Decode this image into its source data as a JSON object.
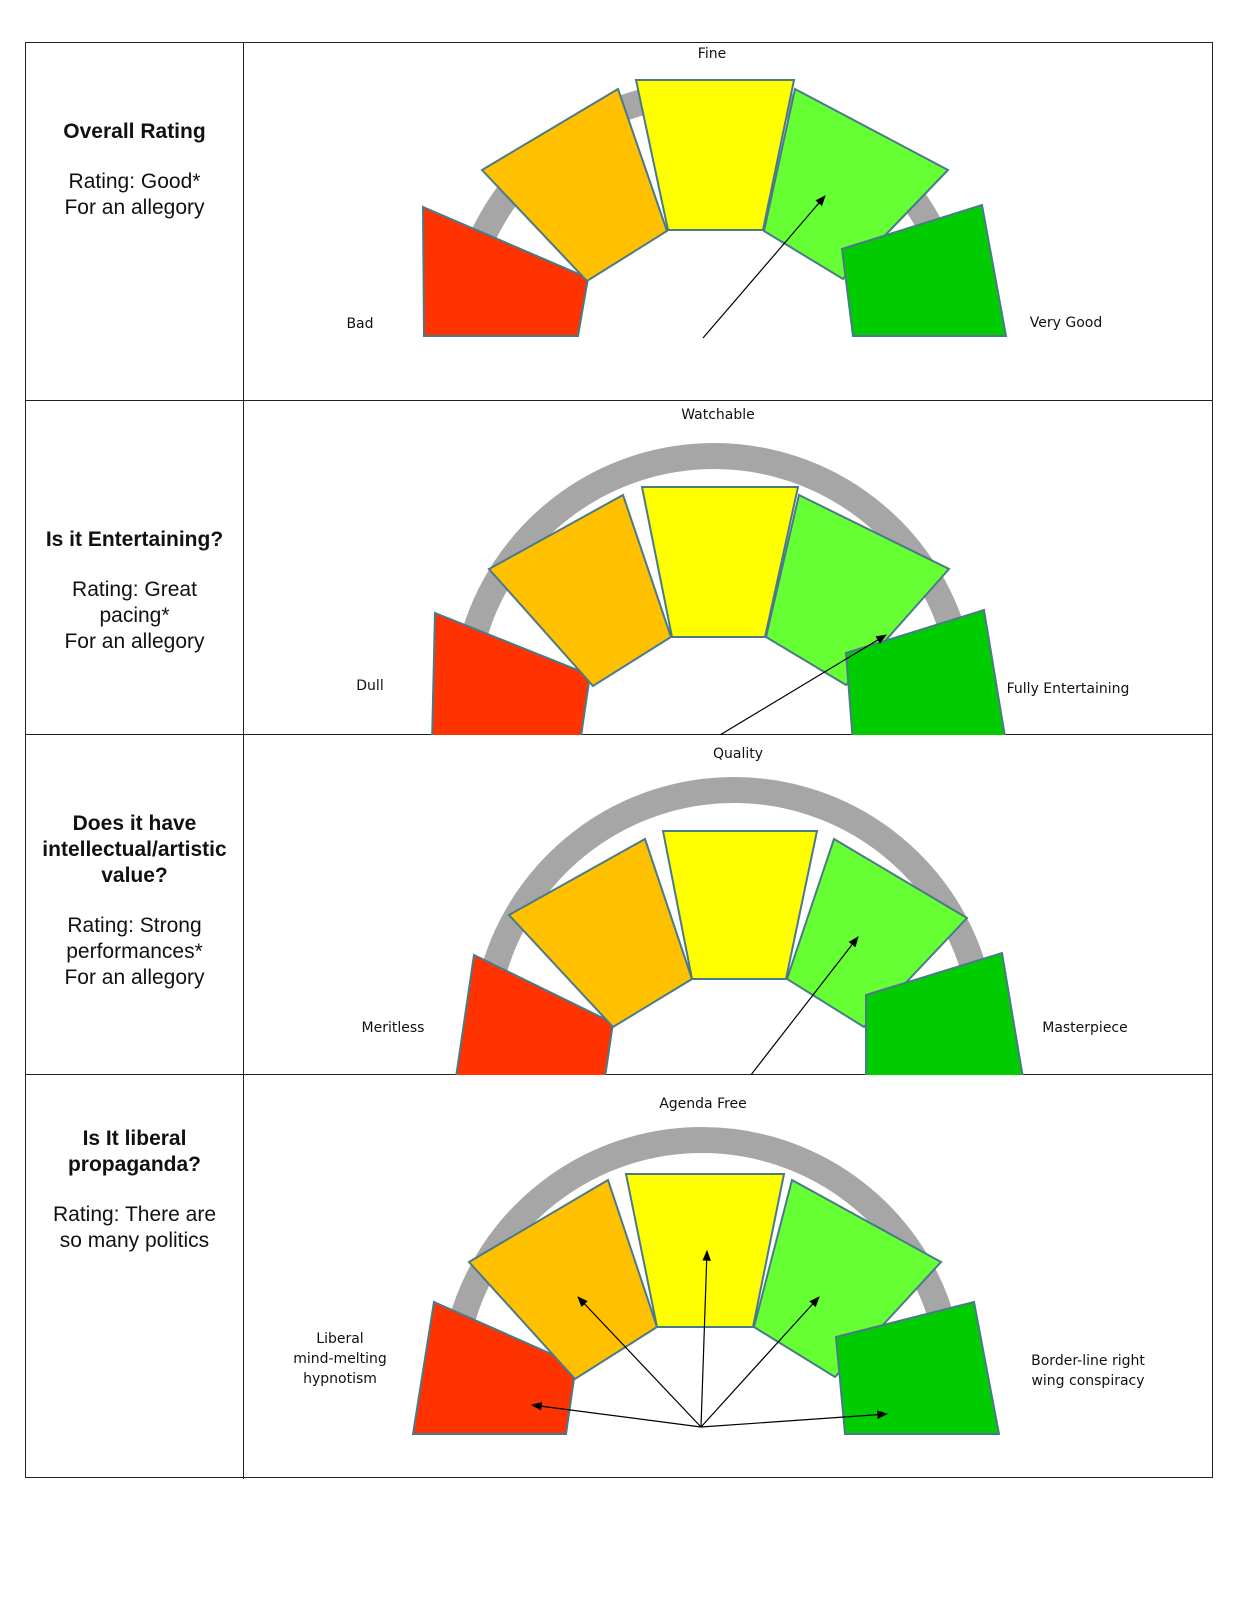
{
  "colors": {
    "red": "#ff3300",
    "orange": "#ffc000",
    "yellow": "#ffff00",
    "light_green": "#66ff33",
    "dark_green": "#00cc00",
    "track": "#a6a6a6",
    "outline": "#4a7a8a",
    "arrow": "#000000"
  },
  "rows": [
    {
      "question": "Overall Rating",
      "rating": "Rating: Good*\nFor an allegory",
      "gauge": {
        "top_label": "Fine",
        "left_label": "Bad",
        "right_label": "Very Good"
      }
    },
    {
      "question": "Is it Entertaining?",
      "rating": "Rating: Great\npacing*\nFor an allegory",
      "gauge": {
        "top_label": "Watchable",
        "left_label": "Dull",
        "right_label": "Fully Entertaining"
      }
    },
    {
      "question": "Does it have\nintellectual/artistic\nvalue?",
      "rating": "Rating: Strong\nperformances*\nFor an allegory",
      "gauge": {
        "top_label": "Quality",
        "left_label": "Meritless",
        "right_label": "Masterpiece"
      }
    },
    {
      "question": "Is It liberal\npropaganda?",
      "rating": "Rating: There are\nso many politics",
      "gauge": {
        "top_label": "Agenda Free",
        "left_label": "Liberal\nmind-melting\nhypnotism",
        "right_label": "Border-line right\nwing conspiracy"
      }
    }
  ]
}
